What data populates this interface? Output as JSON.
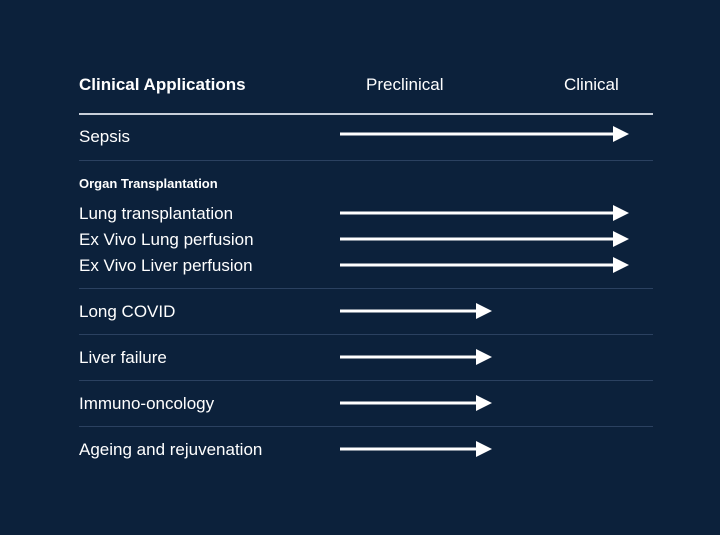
{
  "header": {
    "column_applications": "Clinical Applications",
    "stage_preclinical": "Preclinical",
    "stage_clinical": "Clinical"
  },
  "stages": [
    "Preclinical",
    "Clinical"
  ],
  "rows": [
    {
      "label": "Sepsis",
      "stage": "Clinical"
    },
    {
      "label": "Lung transplantation",
      "stage": "Clinical",
      "group": "Organ Transplantation"
    },
    {
      "label": "Ex Vivo Lung perfusion",
      "stage": "Clinical",
      "group": "Organ Transplantation"
    },
    {
      "label": "Ex Vivo Liver perfusion",
      "stage": "Clinical",
      "group": "Organ Transplantation"
    },
    {
      "label": "Long COVID",
      "stage": "Preclinical"
    },
    {
      "label": "Liver failure",
      "stage": "Preclinical"
    },
    {
      "label": "Immuno-oncology",
      "stage": "Preclinical"
    },
    {
      "label": "Ageing and rejuvenation",
      "stage": "Preclinical"
    }
  ],
  "groups": [
    {
      "label": "Organ Transplantation"
    }
  ],
  "colors": {
    "background": "#0c213b",
    "text": "#ffffff",
    "divider": "#2b4160",
    "header_rule": "#c7ced8",
    "arrow": "#ffffff"
  }
}
